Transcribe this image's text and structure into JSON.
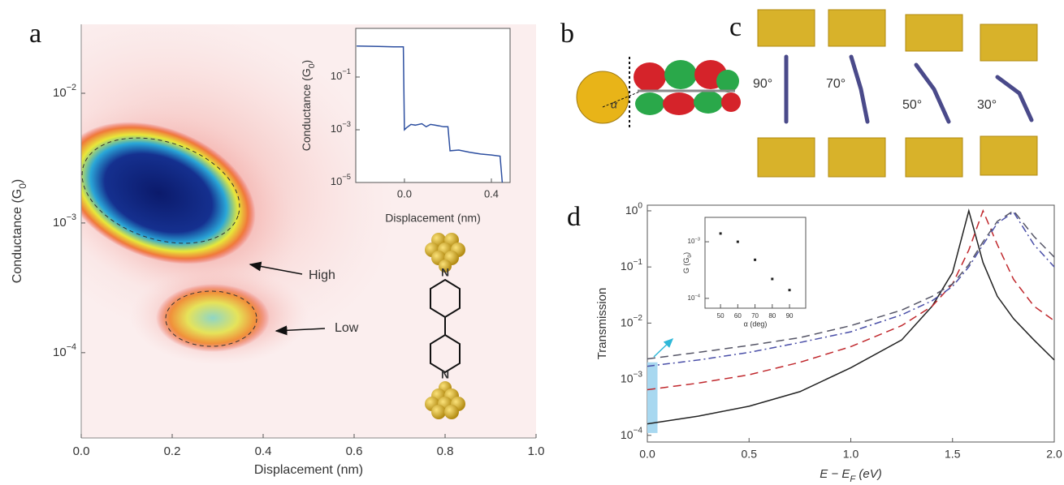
{
  "panel_labels": [
    "a",
    "b",
    "c",
    "d"
  ],
  "panel_a": {
    "annotations": [
      "High",
      "Low"
    ],
    "atoms": [
      "N",
      "N"
    ]
  },
  "panel_b": {
    "angle": "α"
  },
  "panel_c": {
    "angles": [
      "90°",
      "70°",
      "50°",
      "30°"
    ]
  },
  "chart_data": [
    {
      "type": "heatmap",
      "xlabel": "Displacement (nm)",
      "ylabel": [
        "Conductance (G",
        "0",
        ")"
      ],
      "xlim": [
        0,
        1
      ],
      "xticks": [
        {
          "value": 0,
          "label": "0.0"
        },
        {
          "value": 0.2,
          "label": "0.2"
        },
        {
          "value": 0.4,
          "label": "0.4"
        },
        {
          "value": 0.6,
          "label": "0.6"
        },
        {
          "value": 0.8,
          "label": "0.8"
        },
        {
          "value": 1,
          "label": "1.0"
        }
      ],
      "ylog": true,
      "ylim": [
        2.2e-05,
        0.034
      ],
      "yticks": [
        {
          "value": 0.01,
          "label": "10",
          "power": "−2"
        },
        {
          "value": 0.001,
          "label": "10",
          "power": "−3"
        },
        {
          "value": 0.0001,
          "label": "10",
          "power": "−4"
        }
      ]
    },
    {
      "type": "line",
      "xlabel": "Displacement (nm)",
      "ylabel": [
        "Conductance (G",
        "0",
        ")"
      ],
      "xlim": [
        -0.224,
        0.486
      ],
      "xticks": [
        {
          "value": 0,
          "label": "0.0"
        },
        {
          "value": 0.4,
          "label": "0.4"
        }
      ],
      "ylog": true,
      "ylim": [
        1e-05,
        7
      ],
      "yticks": [
        {
          "value": 0.1,
          "label": "10",
          "power": "−1"
        },
        {
          "value": 0.001,
          "label": "10",
          "power": "−3"
        },
        {
          "value": 1e-05,
          "label": "10",
          "power": "−5"
        }
      ],
      "x": [
        -0.22,
        -0.12,
        -0.05,
        -0.005,
        0.0,
        0.01,
        0.03,
        0.05,
        0.08,
        0.1,
        0.12,
        0.14,
        0.16,
        0.18,
        0.2,
        0.21,
        0.25,
        0.3,
        0.35,
        0.4,
        0.44,
        0.45
      ],
      "values": [
        1.5,
        1.45,
        1.4,
        1.4,
        0.001,
        0.0012,
        0.0016,
        0.0015,
        0.0017,
        0.0013,
        0.0016,
        0.0015,
        0.0014,
        0.0013,
        0.0013,
        0.00016,
        0.00017,
        0.00014,
        0.00012,
        0.00011,
        0.0001,
        1e-05
      ],
      "color": "#2d4fa0"
    },
    {
      "type": "line",
      "xlabel": [
        "E − E",
        "F",
        " (eV)"
      ],
      "ylabel": "Transmission",
      "xlim": [
        0,
        2
      ],
      "xticks": [
        {
          "value": 0,
          "label": "0.0"
        },
        {
          "value": 0.5,
          "label": "0.5"
        },
        {
          "value": 1,
          "label": "1.0"
        },
        {
          "value": 1.5,
          "label": "1.5"
        },
        {
          "value": 2,
          "label": "2.0"
        }
      ],
      "ylog": true,
      "ylim": [
        7.6e-05,
        1.26
      ],
      "yticks": [
        {
          "value": 1,
          "label": "10",
          "power": "0"
        },
        {
          "value": 0.1,
          "label": "10",
          "power": "−1"
        },
        {
          "value": 0.01,
          "label": "10",
          "power": "−2"
        },
        {
          "value": 0.001,
          "label": "10",
          "power": "−3"
        },
        {
          "value": 0.0001,
          "label": "10",
          "power": "−4"
        }
      ],
      "x": [
        0,
        0.25,
        0.5,
        0.75,
        1.0,
        1.25,
        1.4,
        1.5,
        1.58,
        1.65,
        1.72,
        1.8,
        1.9,
        2.0
      ],
      "series": [
        {
          "color": "#222222",
          "dash": "solid",
          "values": [
            0.00016,
            0.00022,
            0.00033,
            0.0006,
            0.0016,
            0.005,
            0.02,
            0.08,
            1.0,
            0.12,
            0.03,
            0.012,
            0.005,
            0.0022
          ]
        },
        {
          "color": "#c0282d",
          "dash": "dashed",
          "values": [
            0.00065,
            0.00085,
            0.0012,
            0.002,
            0.0038,
            0.009,
            0.02,
            0.05,
            0.2,
            1.0,
            0.25,
            0.06,
            0.02,
            0.011
          ]
        },
        {
          "color": "#4a4fa8",
          "dash": "dashdot",
          "values": [
            0.0017,
            0.0022,
            0.003,
            0.0045,
            0.007,
            0.014,
            0.025,
            0.045,
            0.1,
            0.25,
            0.6,
            0.95,
            0.25,
            0.1
          ]
        },
        {
          "color": "#555566",
          "dash": "dashed",
          "values": [
            0.0023,
            0.003,
            0.004,
            0.0055,
            0.009,
            0.017,
            0.03,
            0.05,
            0.11,
            0.28,
            0.65,
            1.0,
            0.35,
            0.15
          ]
        }
      ],
      "highlight": {
        "x": [
          0,
          0.05
        ],
        "y": [
          0.00011,
          0.002
        ],
        "color": "#a8d8f0"
      }
    },
    {
      "type": "scatter",
      "xlabel": "α (deg)",
      "ylabel": [
        "G (G",
        "0",
        ")"
      ],
      "xlim": [
        41,
        99.4
      ],
      "xticks": [
        50,
        60,
        70,
        80,
        90
      ],
      "ylog": true,
      "ylim": [
        6.7e-05,
        0.0027
      ],
      "yticks": [
        {
          "value": 0.001,
          "label": "10",
          "power": "−3"
        },
        {
          "value": 0.0001,
          "label": "10",
          "power": "−4"
        }
      ],
      "x": [
        50,
        60,
        70,
        80,
        90
      ],
      "values": [
        0.0014,
        0.001,
        0.00048,
        0.00022,
        0.00014
      ],
      "color": "#222222"
    }
  ]
}
